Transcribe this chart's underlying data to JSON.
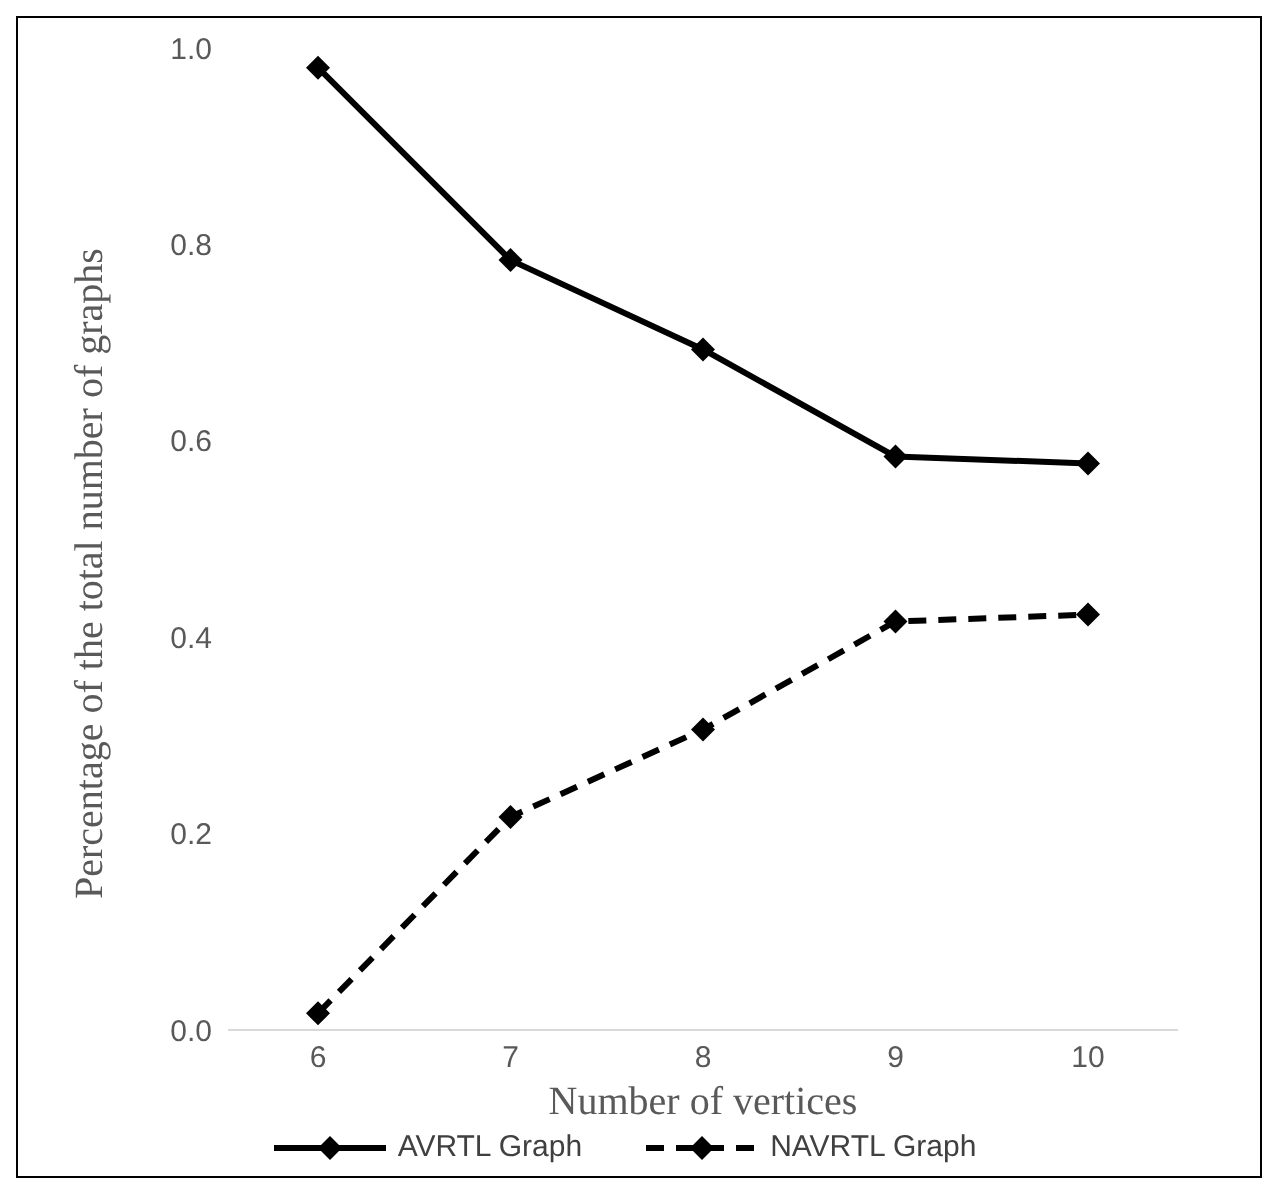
{
  "chart_data": {
    "type": "line",
    "xlabel": "Number of vertices",
    "ylabel": "Percentage of the total number of graphs",
    "categories": [
      "6",
      "7",
      "8",
      "9",
      "10"
    ],
    "series": [
      {
        "name": "AVRTL Graph",
        "color": "#000000",
        "line_style": "solid",
        "values": [
          0.98,
          0.784,
          0.693,
          0.584,
          0.577
        ]
      },
      {
        "name": "NAVRTL Graph",
        "color": "#000000",
        "line_style": "dashed",
        "values": [
          0.017,
          0.217,
          0.306,
          0.416,
          0.423
        ]
      }
    ],
    "ylim": [
      0,
      1.0
    ],
    "yticks": [
      {
        "value": 0,
        "label": "0.0"
      },
      {
        "value": 0.2,
        "label": "0.2"
      },
      {
        "value": 0.4,
        "label": "0.4"
      },
      {
        "value": 0.6,
        "label": "0.6"
      },
      {
        "value": 0.8,
        "label": "0.8"
      },
      {
        "value": 1.0,
        "label": "1.0"
      }
    ],
    "grid": false,
    "legend": "bottom",
    "marker": "diamond"
  }
}
